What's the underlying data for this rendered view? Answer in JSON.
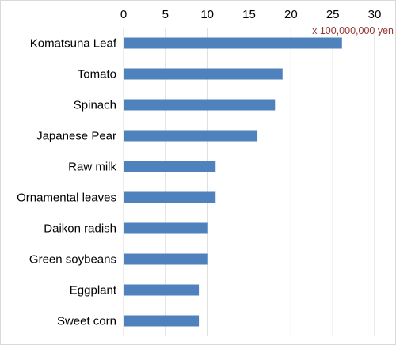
{
  "chart_data": {
    "type": "bar",
    "orientation": "horizontal",
    "unit_label": "x 100,000,000 yen",
    "categories": [
      "Komatsuna Leaf",
      "Tomato",
      "Spinach",
      "Japanese Pear",
      "Raw milk",
      "Ornamental leaves",
      "Daikon radish",
      "Green soybeans",
      "Eggplant",
      "Sweet corn"
    ],
    "values": [
      26.1,
      19.0,
      18.1,
      16.0,
      11.0,
      11.0,
      10.0,
      10.0,
      9.0,
      9.0
    ],
    "xlim": [
      0,
      30
    ],
    "xticks": [
      "0",
      "5",
      "10",
      "15",
      "20",
      "25",
      "30"
    ],
    "x_axis_position": "top",
    "grid": "vertical",
    "colors": {
      "bar": "#4f81bd",
      "unit_label": "#953735",
      "grid": "#d9d9d9"
    }
  }
}
